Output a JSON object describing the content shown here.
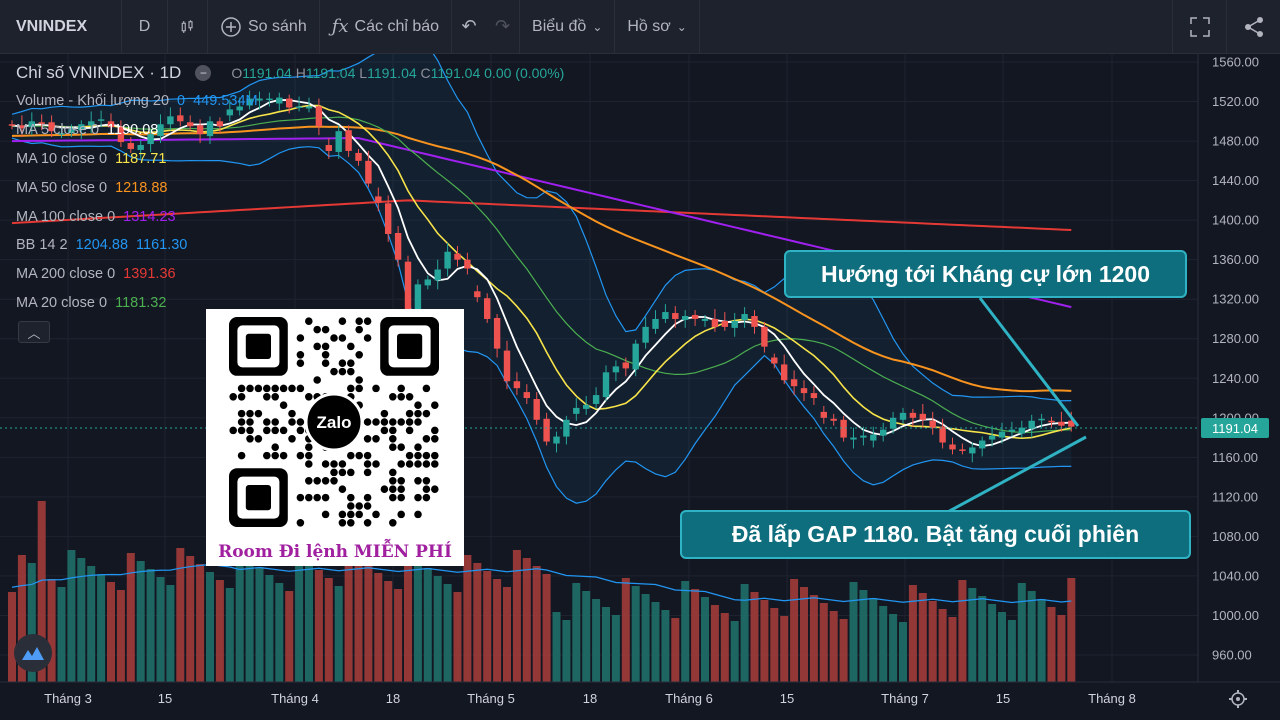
{
  "toolbar": {
    "symbol": "VNINDEX",
    "interval": "D",
    "compare_label": "So sánh",
    "indicators_label": "Các chỉ báo",
    "chart_type_label": "Biểu đồ",
    "profile_label": "Hồ sơ"
  },
  "legend": {
    "title": "Chỉ số VNINDEX · 1D",
    "ohlc": {
      "o_label": "O",
      "o": "1191.04",
      "h_label": "H",
      "h": "1191.04",
      "l_label": "L",
      "l": "1191.04",
      "c_label": "C",
      "c": "1191.04",
      "chg": "0.00 (0.00%)"
    },
    "volume": {
      "label": "Volume - Khối lượng 20",
      "v1": "0",
      "v2": "449.534M"
    },
    "ma5": {
      "label": "MA 5 close 0",
      "value": "1190.08"
    },
    "ma10": {
      "label": "MA 10 close 0",
      "value": "1187.71"
    },
    "ma50": {
      "label": "MA 50 close 0",
      "value": "1218.88"
    },
    "ma100": {
      "label": "MA 100 close 0",
      "value": "1314.23"
    },
    "bb": {
      "label": "BB 14 2",
      "v1": "1204.88",
      "v2": "1161.30"
    },
    "ma200": {
      "label": "MA 200 close 0",
      "value": "1391.36"
    },
    "ma20": {
      "label": "MA 20 close 0",
      "value": "1181.32"
    }
  },
  "colors": {
    "bull": "#26a69a",
    "bear": "#ef5350",
    "ma5": "#ffffff",
    "ma10": "#f7e34a",
    "ma50": "#f7931e",
    "ma100": "#a020f0",
    "ma200": "#e53935",
    "ma20": "#4caf50",
    "bb": "#2196f3"
  },
  "price_axis": {
    "ticks": [
      "1560.00",
      "1520.00",
      "1480.00",
      "1440.00",
      "1400.00",
      "1360.00",
      "1320.00",
      "1280.00",
      "1240.00",
      "1200.00",
      "1160.00",
      "1120.00",
      "1080.00",
      "1040.00",
      "1000.00",
      "960.00"
    ],
    "current": "1191.04"
  },
  "time_axis": {
    "ticks": [
      "Tháng 3",
      "15",
      "Tháng 4",
      "18",
      "Tháng 5",
      "18",
      "Tháng 6",
      "15",
      "Tháng 7",
      "15",
      "Tháng 8"
    ]
  },
  "qr": {
    "brand": "Zalo",
    "caption": "Room Đi lệnh MIỄN PHÍ"
  },
  "callouts": {
    "resistance": "Hướng tới Kháng cự lớn 1200",
    "gap": "Đã lấp GAP 1180. Bật tăng cuối phiên"
  },
  "icons": [
    "bar-style-icon",
    "plus-circle-icon",
    "fx-icon",
    "undo-icon",
    "redo-icon",
    "chevron-down-icon",
    "fullscreen-icon",
    "share-icon",
    "settings-icon",
    "tradingview-logo-icon"
  ],
  "chart_data": {
    "type": "candlestick",
    "ylim": [
      940,
      1570
    ],
    "closes": [
      1496,
      1493,
      1500,
      1498,
      1490,
      1488,
      1492,
      1497,
      1500,
      1502,
      1494,
      1479,
      1472,
      1476,
      1487,
      1497,
      1505,
      1500,
      1495,
      1487,
      1500,
      1495,
      1512,
      1515,
      1523,
      1523,
      1523,
      1524,
      1514,
      1515,
      1515,
      1495,
      1470,
      1490,
      1470,
      1460,
      1437,
      1418,
      1386,
      1360,
      1310,
      1335,
      1340,
      1350,
      1368,
      1360,
      1351,
      1322,
      1300,
      1270,
      1237,
      1230,
      1220,
      1198,
      1176,
      1181,
      1198,
      1210,
      1213,
      1223,
      1246,
      1252,
      1250,
      1275,
      1292,
      1300,
      1307,
      1300,
      1303,
      1300,
      1300,
      1292,
      1292,
      1298,
      1305,
      1292,
      1272,
      1255,
      1238,
      1232,
      1225,
      1220,
      1200,
      1197,
      1180,
      1180,
      1182,
      1183,
      1188,
      1200,
      1205,
      1200,
      1198,
      1190,
      1175,
      1168,
      1167,
      1170,
      1177,
      1182,
      1186,
      1188,
      1190,
      1197,
      1199,
      1196,
      1192,
      1191.04
    ],
    "volume_unit": "relative"
  }
}
